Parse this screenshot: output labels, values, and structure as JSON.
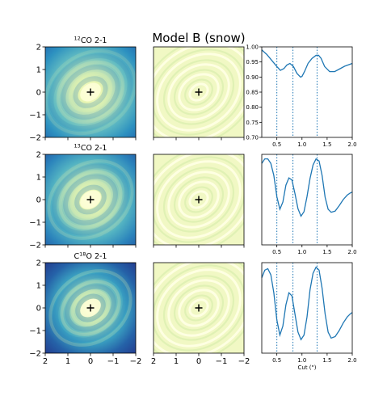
{
  "figure": {
    "title": "Model B (snow)",
    "row_titles": [
      {
        "pre": "",
        "sup": "12",
        "post": "CO 2-1"
      },
      {
        "pre": "",
        "sup": "13",
        "post": "CO 2-1"
      },
      {
        "pre": "C",
        "sup": "18",
        "post": "O 2-1"
      }
    ],
    "cut_xlabel": "Cut (\")",
    "map_xticks": [
      "2",
      "1",
      "0",
      "−1",
      "−2"
    ],
    "map_yticks": [
      "2",
      "1",
      "0",
      "−1",
      "−2"
    ],
    "cut_xticks": [
      "0.5",
      "1.0",
      "1.5",
      "2.0"
    ],
    "cut_yticks": [
      "1.00",
      "0.95",
      "0.90",
      "0.85",
      "0.80",
      "0.75",
      "0.70"
    ]
  },
  "chart_data": [
    {
      "type": "heatmap",
      "panel": "row1-intensity-map",
      "title": "12CO 2-1",
      "xlim": [
        2,
        -2
      ],
      "ylim": [
        -2,
        2
      ],
      "colormap": "YlGnBu",
      "center_marker": [
        0,
        0
      ]
    },
    {
      "type": "heatmap",
      "panel": "row1-residual-map",
      "xlim": [
        2,
        -2
      ],
      "ylim": [
        -2,
        2
      ],
      "colormap": "YlGnBu",
      "center_marker": [
        0,
        0
      ]
    },
    {
      "type": "line",
      "panel": "row1-cut",
      "xlim": [
        0.2,
        2.0
      ],
      "ylim": [
        0.7,
        1.0
      ],
      "yticks": [
        1.0,
        0.95,
        0.9,
        0.85,
        0.8,
        0.75,
        0.7
      ],
      "vlines": [
        0.5,
        0.82,
        1.3
      ],
      "color": "#1f77b4",
      "x": [
        0.2,
        0.3,
        0.4,
        0.5,
        0.57,
        0.64,
        0.7,
        0.76,
        0.83,
        0.9,
        0.97,
        1.0,
        1.05,
        1.12,
        1.2,
        1.28,
        1.33,
        1.38,
        1.45,
        1.55,
        1.65,
        1.75,
        1.85,
        1.95,
        2.0
      ],
      "y": [
        0.99,
        0.975,
        0.955,
        0.935,
        0.922,
        0.928,
        0.94,
        0.945,
        0.935,
        0.912,
        0.9,
        0.902,
        0.918,
        0.945,
        0.962,
        0.972,
        0.972,
        0.962,
        0.935,
        0.918,
        0.918,
        0.927,
        0.936,
        0.942,
        0.945
      ]
    },
    {
      "type": "heatmap",
      "panel": "row2-intensity-map",
      "title": "13CO 2-1",
      "xlim": [
        2,
        -2
      ],
      "ylim": [
        -2,
        2
      ],
      "colormap": "YlGnBu",
      "center_marker": [
        0,
        0
      ]
    },
    {
      "type": "heatmap",
      "panel": "row2-residual-map",
      "xlim": [
        2,
        -2
      ],
      "ylim": [
        -2,
        2
      ],
      "colormap": "YlGnBu",
      "center_marker": [
        0,
        0
      ]
    },
    {
      "type": "line",
      "panel": "row2-cut",
      "xlim": [
        0.2,
        2.0
      ],
      "ylim": [
        0.7,
        1.0
      ],
      "vlines": [
        0.5,
        0.82,
        1.3
      ],
      "color": "#1f77b4",
      "x": [
        0.2,
        0.26,
        0.32,
        0.38,
        0.44,
        0.5,
        0.56,
        0.62,
        0.68,
        0.74,
        0.8,
        0.86,
        0.92,
        0.98,
        1.04,
        1.1,
        1.16,
        1.22,
        1.28,
        1.34,
        1.4,
        1.46,
        1.52,
        1.58,
        1.66,
        1.74,
        1.82,
        1.9,
        1.96,
        2.0
      ],
      "y": [
        0.97,
        0.985,
        0.985,
        0.97,
        0.93,
        0.86,
        0.818,
        0.842,
        0.898,
        0.922,
        0.915,
        0.87,
        0.82,
        0.795,
        0.81,
        0.86,
        0.92,
        0.965,
        0.985,
        0.978,
        0.93,
        0.858,
        0.818,
        0.808,
        0.812,
        0.83,
        0.85,
        0.865,
        0.872,
        0.875
      ]
    },
    {
      "type": "heatmap",
      "panel": "row3-intensity-map",
      "title": "C18O 2-1",
      "xlim": [
        2,
        -2
      ],
      "ylim": [
        -2,
        2
      ],
      "colormap": "YlGnBu",
      "center_marker": [
        0,
        0
      ]
    },
    {
      "type": "heatmap",
      "panel": "row3-residual-map",
      "xlim": [
        2,
        -2
      ],
      "ylim": [
        -2,
        2
      ],
      "colormap": "YlGnBu",
      "center_marker": [
        0,
        0
      ]
    },
    {
      "type": "line",
      "panel": "row3-cut",
      "xlim": [
        0.2,
        2.0
      ],
      "ylim": [
        0.7,
        1.0
      ],
      "xlabel": "Cut (\")",
      "vlines": [
        0.5,
        0.82,
        1.3
      ],
      "color": "#1f77b4",
      "x": [
        0.2,
        0.26,
        0.32,
        0.38,
        0.44,
        0.5,
        0.56,
        0.62,
        0.68,
        0.74,
        0.8,
        0.86,
        0.92,
        0.98,
        1.04,
        1.1,
        1.16,
        1.22,
        1.28,
        1.34,
        1.4,
        1.46,
        1.52,
        1.58,
        1.66,
        1.74,
        1.82,
        1.9,
        1.96,
        2.0
      ],
      "y": [
        0.95,
        0.975,
        0.98,
        0.96,
        0.9,
        0.81,
        0.76,
        0.79,
        0.86,
        0.9,
        0.89,
        0.83,
        0.77,
        0.745,
        0.76,
        0.82,
        0.91,
        0.965,
        0.985,
        0.975,
        0.915,
        0.83,
        0.77,
        0.75,
        0.755,
        0.775,
        0.8,
        0.82,
        0.83,
        0.835
      ]
    }
  ]
}
